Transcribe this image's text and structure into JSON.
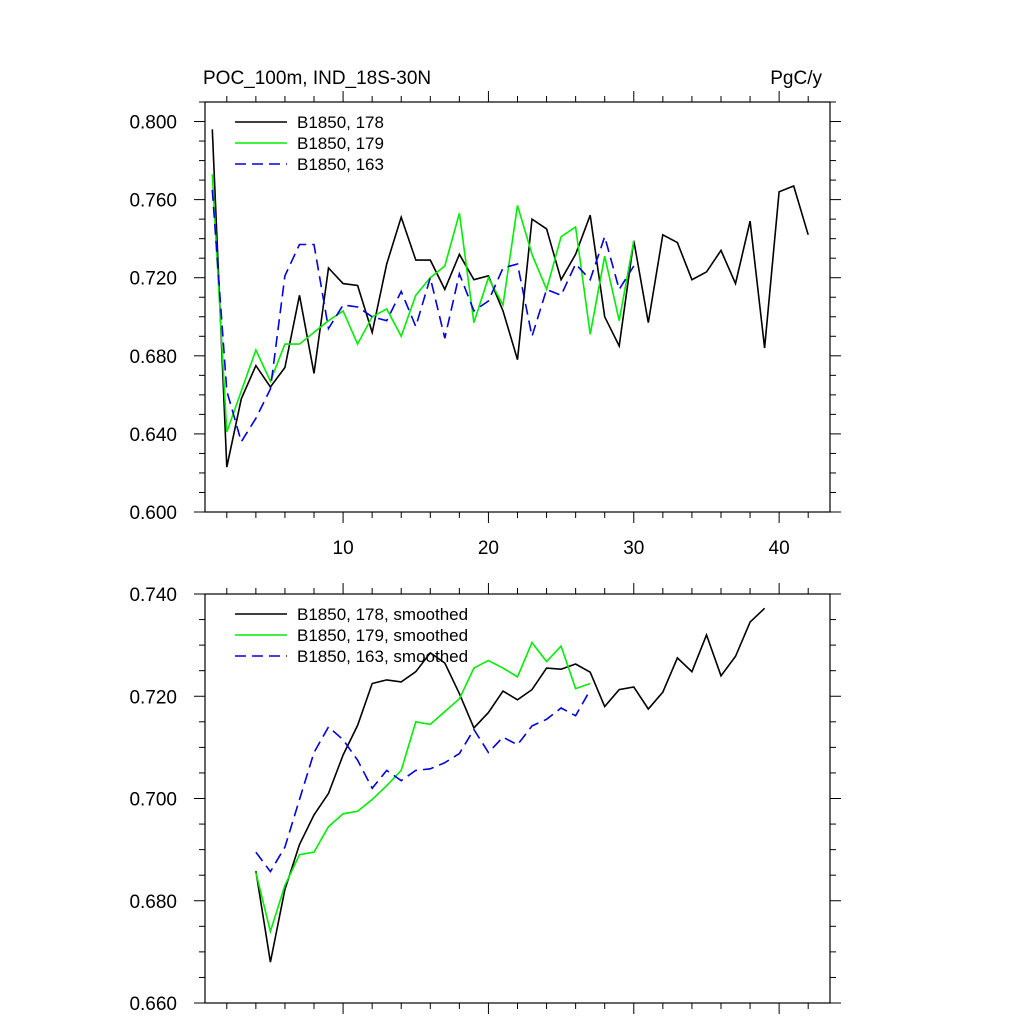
{
  "chart_data": [
    {
      "type": "line",
      "title_left": "POC_100m, IND_18S-30N",
      "title_right": "PgC/y",
      "xlim": [
        0.5,
        43.5
      ],
      "ylim": [
        0.6,
        0.81
      ],
      "xticks": [
        10,
        20,
        30,
        40
      ],
      "xtick_labels": [
        "10",
        "20",
        "30",
        "40"
      ],
      "yticks": [
        0.6,
        0.64,
        0.68,
        0.72,
        0.76,
        0.8
      ],
      "ytick_labels": [
        "0.600",
        "0.640",
        "0.680",
        "0.720",
        "0.760",
        "0.800"
      ],
      "legend_position": "top-left",
      "series": [
        {
          "name": "B1850, 178",
          "color": "#000000",
          "dash": "solid",
          "x": [
            1,
            2,
            3,
            4,
            5,
            6,
            7,
            8,
            9,
            10,
            11,
            12,
            13,
            14,
            15,
            16,
            17,
            18,
            19,
            20,
            21,
            22,
            23,
            24,
            25,
            26,
            27,
            28,
            29,
            30,
            31,
            32,
            33,
            34,
            35,
            36,
            37,
            38,
            39,
            40,
            41,
            42
          ],
          "y": [
            0.796,
            0.623,
            0.658,
            0.675,
            0.664,
            0.674,
            0.711,
            0.671,
            0.725,
            0.717,
            0.716,
            0.692,
            0.727,
            0.751,
            0.729,
            0.729,
            0.714,
            0.732,
            0.719,
            0.721,
            0.703,
            0.678,
            0.75,
            0.745,
            0.719,
            0.732,
            0.752,
            0.7,
            0.685,
            0.739,
            0.697,
            0.742,
            0.738,
            0.719,
            0.723,
            0.734,
            0.717,
            0.749,
            0.684,
            0.764,
            0.767,
            0.742
          ]
        },
        {
          "name": "B1850, 179",
          "color": "#00ee00",
          "dash": "solid",
          "x": [
            1,
            2,
            3,
            4,
            5,
            6,
            7,
            8,
            9,
            10,
            11,
            12,
            13,
            14,
            15,
            16,
            17,
            18,
            19,
            20,
            21,
            22,
            23,
            24,
            25,
            26,
            27,
            28,
            29,
            30
          ],
          "y": [
            0.773,
            0.641,
            0.662,
            0.683,
            0.667,
            0.686,
            0.686,
            0.692,
            0.698,
            0.703,
            0.686,
            0.7,
            0.704,
            0.69,
            0.711,
            0.72,
            0.726,
            0.753,
            0.697,
            0.72,
            0.706,
            0.757,
            0.732,
            0.714,
            0.741,
            0.746,
            0.691,
            0.731,
            0.698,
            0.739
          ]
        },
        {
          "name": "B1850, 163",
          "color": "#0000dd",
          "dash": "dashed",
          "x": [
            1,
            2,
            3,
            4,
            5,
            6,
            7,
            8,
            9,
            10,
            11,
            12,
            13,
            14,
            15,
            16,
            17,
            18,
            19,
            20,
            21,
            22,
            23,
            24,
            25,
            26,
            27,
            28,
            29,
            30
          ],
          "y": [
            0.765,
            0.662,
            0.636,
            0.648,
            0.663,
            0.721,
            0.737,
            0.737,
            0.694,
            0.706,
            0.705,
            0.7,
            0.698,
            0.713,
            0.695,
            0.72,
            0.689,
            0.722,
            0.703,
            0.708,
            0.725,
            0.727,
            0.69,
            0.714,
            0.711,
            0.727,
            0.719,
            0.741,
            0.714,
            0.726
          ]
        }
      ]
    },
    {
      "type": "line",
      "xlim": [
        0.5,
        43.5
      ],
      "ylim": [
        0.66,
        0.74
      ],
      "xticks": [
        10,
        20,
        30,
        40
      ],
      "yticks": [
        0.66,
        0.68,
        0.7,
        0.72,
        0.74
      ],
      "ytick_labels": [
        "0.660",
        "0.680",
        "0.700",
        "0.720",
        "0.740"
      ],
      "legend_position": "top-left",
      "series": [
        {
          "name": "B1850, 178, smoothed",
          "color": "#000000",
          "dash": "solid",
          "x": [
            4,
            5,
            6,
            7,
            8,
            9,
            10,
            11,
            12,
            13,
            14,
            15,
            16,
            17,
            18,
            19,
            20,
            21,
            22,
            23,
            24,
            25,
            26,
            27,
            28,
            29,
            30,
            31,
            32,
            33,
            34,
            35,
            36,
            37,
            38,
            39
          ],
          "y": [
            0.6858,
            0.668,
            0.6822,
            0.691,
            0.6968,
            0.701,
            0.7085,
            0.7143,
            0.7225,
            0.7232,
            0.7228,
            0.7248,
            0.7285,
            0.7265,
            0.7205,
            0.7138,
            0.7168,
            0.721,
            0.7193,
            0.7213,
            0.7255,
            0.7253,
            0.7263,
            0.7247,
            0.718,
            0.7213,
            0.7218,
            0.7175,
            0.7208,
            0.7275,
            0.7248,
            0.732,
            0.724,
            0.7278,
            0.7345,
            0.7372
          ]
        },
        {
          "name": "B1850, 179, smoothed",
          "color": "#00ee00",
          "dash": "solid",
          "x": [
            4,
            5,
            6,
            7,
            8,
            9,
            10,
            11,
            12,
            13,
            14,
            15,
            16,
            17,
            18,
            19,
            20,
            21,
            22,
            23,
            24,
            25,
            26,
            27
          ],
          "y": [
            0.6855,
            0.674,
            0.683,
            0.689,
            0.6895,
            0.6945,
            0.697,
            0.6975,
            0.6998,
            0.7025,
            0.7055,
            0.715,
            0.7145,
            0.717,
            0.7195,
            0.7255,
            0.727,
            0.7255,
            0.7238,
            0.7305,
            0.7268,
            0.7298,
            0.7215,
            0.7225
          ]
        },
        {
          "name": "B1850, 163, smoothed",
          "color": "#0000dd",
          "dash": "dashed",
          "x": [
            4,
            5,
            6,
            7,
            8,
            9,
            10,
            11,
            12,
            13,
            14,
            15,
            16,
            17,
            18,
            19,
            20,
            21,
            22,
            23,
            24,
            25,
            26,
            27
          ],
          "y": [
            0.6895,
            0.6857,
            0.6905,
            0.6998,
            0.709,
            0.714,
            0.7115,
            0.7075,
            0.702,
            0.7055,
            0.7035,
            0.7055,
            0.7058,
            0.707,
            0.7088,
            0.7135,
            0.709,
            0.712,
            0.7105,
            0.7142,
            0.7155,
            0.7177,
            0.7162,
            0.7212
          ]
        }
      ]
    }
  ]
}
